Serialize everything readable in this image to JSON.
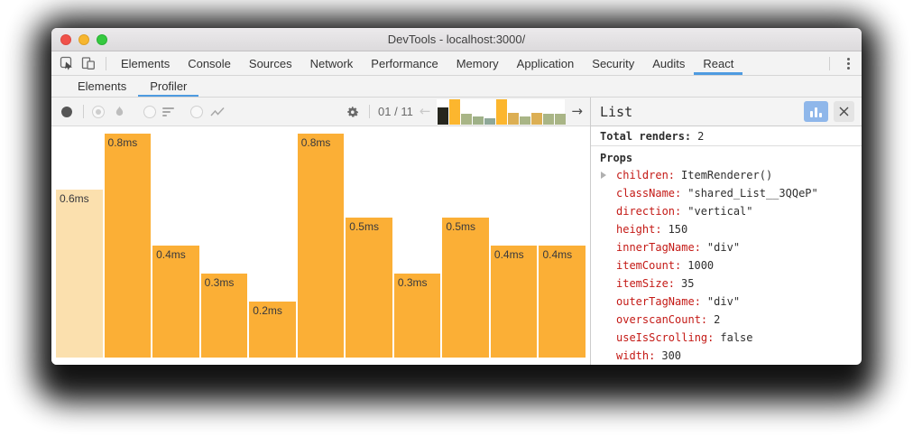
{
  "titlebar": {
    "title": "DevTools - localhost:3000/"
  },
  "main_tabs": {
    "items": [
      "Elements",
      "Console",
      "Sources",
      "Network",
      "Performance",
      "Memory",
      "Application",
      "Security",
      "Audits",
      "React"
    ],
    "active_index": 9
  },
  "sub_tabs": {
    "items": [
      "Elements",
      "Profiler"
    ],
    "active_index": 1
  },
  "icons": {
    "prev_arrow": "←",
    "next_arrow": "→",
    "close": "✕"
  },
  "profiler_toolbar": {
    "snapshot_counter": "01 / 11",
    "snapshots": [
      {
        "color": "#26261e",
        "h": 0.68,
        "selected": true
      },
      {
        "color": "#fcb62e",
        "h": 1.0
      },
      {
        "color": "#a9b586",
        "h": 0.43
      },
      {
        "color": "#9fb188",
        "h": 0.32
      },
      {
        "color": "#8fa899",
        "h": 0.25
      },
      {
        "color": "#fcb62e",
        "h": 1.0
      },
      {
        "color": "#dcaf54",
        "h": 0.46
      },
      {
        "color": "#a9b586",
        "h": 0.32
      },
      {
        "color": "#dcaf54",
        "h": 0.46
      },
      {
        "color": "#a9b586",
        "h": 0.43
      },
      {
        "color": "#a9b586",
        "h": 0.43
      }
    ]
  },
  "chart_data": {
    "type": "bar",
    "title": "Profiler commit bar chart — render durations",
    "unit": "ms",
    "labels": [
      "0.6ms",
      "0.8ms",
      "0.4ms",
      "0.3ms",
      "0.2ms",
      "0.8ms",
      "0.5ms",
      "0.3ms",
      "0.5ms",
      "0.4ms",
      "0.4ms"
    ],
    "values": [
      0.6,
      0.8,
      0.4,
      0.3,
      0.2,
      0.8,
      0.5,
      0.3,
      0.5,
      0.4,
      0.4
    ],
    "max_value": 0.8,
    "ylim": [
      0,
      0.8
    ],
    "bar_color": "#fbaf36",
    "selected_bar_color": "#fbe0ae",
    "selected_index": 0,
    "label_color": "#38383d"
  },
  "details_panel": {
    "title": "List",
    "total_renders_label": "Total renders:",
    "total_renders_value": "2",
    "props_header": "Props",
    "props": [
      {
        "key": "children",
        "value": "ItemRenderer()",
        "expandable": true
      },
      {
        "key": "className",
        "value": "\"shared_List__3QQeP\""
      },
      {
        "key": "direction",
        "value": "\"vertical\""
      },
      {
        "key": "height",
        "value": "150"
      },
      {
        "key": "innerTagName",
        "value": "\"div\""
      },
      {
        "key": "itemCount",
        "value": "1000"
      },
      {
        "key": "itemSize",
        "value": "35"
      },
      {
        "key": "outerTagName",
        "value": "\"div\""
      },
      {
        "key": "overscanCount",
        "value": "2"
      },
      {
        "key": "useIsScrolling",
        "value": "false"
      },
      {
        "key": "width",
        "value": "300"
      }
    ]
  },
  "colors": {
    "accent_blue": "#4e9be0",
    "prop_key_red": "#c41a16",
    "orange": "#fbaf36",
    "pale_orange": "#fbe0ae"
  }
}
